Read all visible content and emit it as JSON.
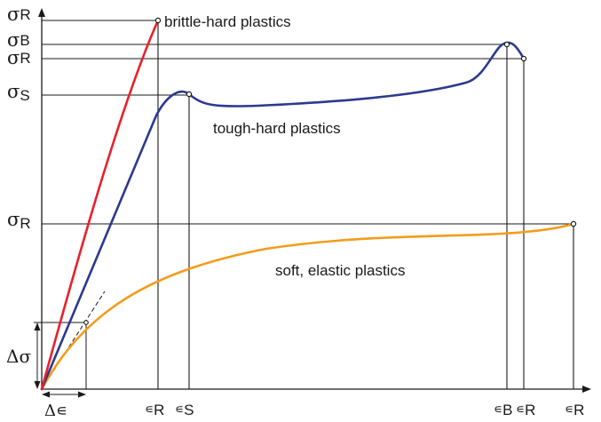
{
  "colors": {
    "brittle": "#e8202a",
    "tough": "#2b3990",
    "soft": "#f39c1a",
    "ink": "#1a1a1a"
  },
  "curves": {
    "brittle": {
      "label": "brittle-hard plastics"
    },
    "tough": {
      "label": "tough-hard plastics"
    },
    "soft": {
      "label": "soft, elastic plastics"
    }
  },
  "y_labels": {
    "sigma_R_top": {
      "sym": "σ",
      "sub": "R"
    },
    "sigma_B": {
      "sym": "σ",
      "sub": "B"
    },
    "sigma_R_tough": {
      "sym": "σ",
      "sub": "R"
    },
    "sigma_S": {
      "sym": "σ",
      "sub": "S"
    },
    "sigma_R_soft": {
      "sym": "σ",
      "sub": "R"
    },
    "delta_sigma": "Δσ"
  },
  "x_labels": {
    "eps_R_brittle": {
      "sym": "∊",
      "sub": "R"
    },
    "eps_S": {
      "sym": "∊",
      "sub": "S"
    },
    "eps_B": {
      "sym": "∊",
      "sub": "B"
    },
    "eps_R_tough": {
      "sym": "∊",
      "sub": "R"
    },
    "eps_R_soft": {
      "sym": "∊",
      "sub": "R"
    },
    "delta_eps": "Δ∊"
  }
}
